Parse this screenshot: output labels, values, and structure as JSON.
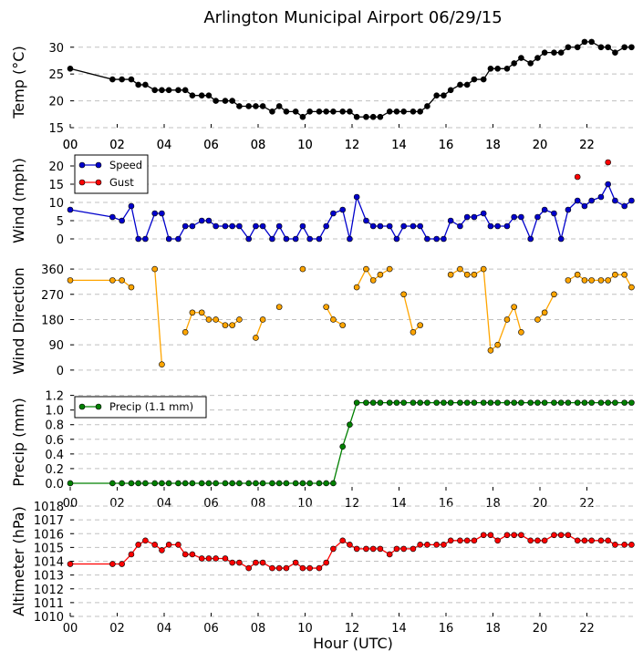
{
  "title": "Arlington Municipal Airport 06/29/15",
  "xlabel": "Hour (UTC)",
  "colors": {
    "temp": "#000000",
    "speed": "#0000cc",
    "gust": "#ff0000",
    "direction": "#ffa500",
    "precip": "#008000",
    "altimeter": "#ff0000",
    "grid": "#c0c0c0"
  },
  "chart_data": [
    {
      "type": "line",
      "name": "temperature",
      "ylabel": "Temp (°C)",
      "xlim": [
        0,
        24
      ],
      "ylim": [
        15,
        32
      ],
      "yticks": [
        15,
        20,
        25,
        30
      ],
      "xticks": [
        "00",
        "02",
        "04",
        "06",
        "08",
        "10",
        "12",
        "14",
        "16",
        "18",
        "20",
        "22"
      ],
      "series": [
        {
          "name": "Temp",
          "x": [
            0,
            1.8,
            2.2,
            2.6,
            2.9,
            3.2,
            3.6,
            3.9,
            4.2,
            4.6,
            4.9,
            5.2,
            5.6,
            5.9,
            6.2,
            6.6,
            6.9,
            7.2,
            7.6,
            7.9,
            8.2,
            8.6,
            8.9,
            9.2,
            9.6,
            9.9,
            10.2,
            10.6,
            10.9,
            11.2,
            11.6,
            11.9,
            12.2,
            12.6,
            12.9,
            13.2,
            13.6,
            13.9,
            14.2,
            14.6,
            14.9,
            15.2,
            15.6,
            15.9,
            16.2,
            16.6,
            16.9,
            17.2,
            17.6,
            17.9,
            18.2,
            18.6,
            18.9,
            19.2,
            19.6,
            19.9,
            20.2,
            20.6,
            20.9,
            21.2,
            21.6,
            21.9,
            22.2,
            22.6,
            22.9,
            23.2,
            23.6,
            23.9
          ],
          "values": [
            26,
            24,
            24,
            24,
            23,
            23,
            22,
            22,
            22,
            22,
            22,
            21,
            21,
            21,
            20,
            20,
            20,
            19,
            19,
            19,
            19,
            18,
            19,
            18,
            18,
            17,
            18,
            18,
            18,
            18,
            18,
            18,
            17,
            17,
            17,
            17,
            18,
            18,
            18,
            18,
            18,
            19,
            21,
            21,
            22,
            23,
            23,
            24,
            24,
            26,
            26,
            26,
            27,
            28,
            27,
            28,
            29,
            29,
            29,
            30,
            30,
            31,
            31,
            30,
            30,
            29,
            30,
            30
          ]
        }
      ]
    },
    {
      "type": "line",
      "name": "wind",
      "ylabel": "Wind (mph)",
      "xlim": [
        0,
        24
      ],
      "ylim": [
        -2,
        23
      ],
      "yticks": [
        0,
        5,
        10,
        15,
        20
      ],
      "legend": [
        "Speed",
        "Gust"
      ],
      "series": [
        {
          "name": "Speed",
          "x": [
            0,
            1.8,
            2.2,
            2.6,
            2.9,
            3.2,
            3.6,
            3.9,
            4.2,
            4.6,
            4.9,
            5.2,
            5.6,
            5.9,
            6.2,
            6.6,
            6.9,
            7.2,
            7.6,
            7.9,
            8.2,
            8.6,
            8.9,
            9.2,
            9.6,
            9.9,
            10.2,
            10.6,
            10.9,
            11.2,
            11.6,
            11.9,
            12.2,
            12.6,
            12.9,
            13.2,
            13.6,
            13.9,
            14.2,
            14.6,
            14.9,
            15.2,
            15.6,
            15.9,
            16.2,
            16.6,
            16.9,
            17.2,
            17.6,
            17.9,
            18.2,
            18.6,
            18.9,
            19.2,
            19.6,
            19.9,
            20.2,
            20.6,
            20.9,
            21.2,
            21.6,
            21.9,
            22.2,
            22.6,
            22.9,
            23.2,
            23.6,
            23.9
          ],
          "values": [
            8,
            6,
            5,
            9,
            0,
            0,
            7,
            7,
            0,
            0,
            3.5,
            3.5,
            5,
            5,
            3.5,
            3.5,
            3.5,
            3.5,
            0,
            3.5,
            3.5,
            0,
            3.5,
            0,
            0,
            3.5,
            0,
            0,
            3.5,
            7,
            8,
            0,
            11.5,
            5,
            3.5,
            3.5,
            3.5,
            0,
            3.5,
            3.5,
            3.5,
            0,
            0,
            0,
            5,
            3.5,
            6,
            6,
            7,
            3.5,
            3.5,
            3.5,
            6,
            6,
            0,
            6,
            8,
            7,
            0,
            8,
            10.5,
            9,
            10.5,
            11.5,
            15,
            10.5,
            9,
            10.5
          ]
        },
        {
          "name": "Gust",
          "x": [
            21.6,
            22.9
          ],
          "values": [
            17,
            21
          ],
          "markers_only": true
        }
      ]
    },
    {
      "type": "line",
      "name": "wind_direction",
      "ylabel": "Wind Direction",
      "xlim": [
        0,
        24
      ],
      "ylim": [
        -20,
        370
      ],
      "yticks": [
        0,
        90,
        180,
        270,
        360
      ],
      "series": [
        {
          "name": "Direction",
          "segments": [
            {
              "x": [
                0,
                1.8,
                2.2,
                2.6
              ],
              "values": [
                320,
                320,
                320,
                295
              ]
            },
            {
              "x": [
                3.6,
                3.9
              ],
              "values": [
                360,
                20
              ]
            },
            {
              "x": [
                4.9,
                5.2,
                5.6,
                5.9,
                6.2,
                6.6,
                6.9,
                7.2
              ],
              "values": [
                135,
                205,
                205,
                180,
                180,
                160,
                160,
                180
              ]
            },
            {
              "x": [
                7.9,
                8.2
              ],
              "values": [
                115,
                180
              ]
            },
            {
              "x": [
                8.9
              ],
              "values": [
                225
              ]
            },
            {
              "x": [
                9.9
              ],
              "values": [
                360
              ]
            },
            {
              "x": [
                10.9,
                11.2,
                11.6
              ],
              "values": [
                225,
                180,
                160
              ]
            },
            {
              "x": [
                12.2,
                12.6,
                12.9,
                13.2,
                13.6
              ],
              "values": [
                295,
                360,
                320,
                340,
                360
              ]
            },
            {
              "x": [
                14.2,
                14.6,
                14.9
              ],
              "values": [
                270,
                135,
                160
              ]
            },
            {
              "x": [
                16.2,
                16.6,
                16.9,
                17.2,
                17.6,
                17.9,
                18.2,
                18.6,
                18.9,
                19.2
              ],
              "values": [
                340,
                360,
                340,
                340,
                360,
                70,
                90,
                180,
                225,
                135
              ]
            },
            {
              "x": [
                19.9,
                20.2,
                20.6
              ],
              "values": [
                180,
                205,
                270
              ]
            },
            {
              "x": [
                21.2,
                21.6,
                21.9,
                22.2,
                22.6,
                22.9,
                23.2,
                23.6,
                23.9
              ],
              "values": [
                320,
                340,
                320,
                320,
                320,
                320,
                340,
                340,
                295
              ]
            }
          ]
        }
      ]
    },
    {
      "type": "line",
      "name": "precipitation",
      "ylabel": "Precip (mm)",
      "xlim": [
        0,
        24
      ],
      "ylim": [
        -0.1,
        1.22
      ],
      "yticks": [
        0.0,
        0.2,
        0.4,
        0.6,
        0.8,
        1.0,
        1.2
      ],
      "ytick_labels": [
        "0.0",
        "0.2",
        "0.4",
        "0.6",
        "0.8",
        "1.0",
        "1.2"
      ],
      "legend": [
        "Precip (1.1 mm)"
      ],
      "series": [
        {
          "name": "Precip (1.1 mm)",
          "x": [
            0,
            1.8,
            2.2,
            2.6,
            2.9,
            3.2,
            3.6,
            3.9,
            4.2,
            4.6,
            4.9,
            5.2,
            5.6,
            5.9,
            6.2,
            6.6,
            6.9,
            7.2,
            7.6,
            7.9,
            8.2,
            8.6,
            8.9,
            9.2,
            9.6,
            9.9,
            10.2,
            10.6,
            10.9,
            11.2,
            11.6,
            11.9,
            12.2,
            12.6,
            12.9,
            13.2,
            13.6,
            13.9,
            14.2,
            14.6,
            14.9,
            15.2,
            15.6,
            15.9,
            16.2,
            16.6,
            16.9,
            17.2,
            17.6,
            17.9,
            18.2,
            18.6,
            18.9,
            19.2,
            19.6,
            19.9,
            20.2,
            20.6,
            20.9,
            21.2,
            21.6,
            21.9,
            22.2,
            22.6,
            22.9,
            23.2,
            23.6,
            23.9
          ],
          "values": [
            0,
            0,
            0,
            0,
            0,
            0,
            0,
            0,
            0,
            0,
            0,
            0,
            0,
            0,
            0,
            0,
            0,
            0,
            0,
            0,
            0,
            0,
            0,
            0,
            0,
            0,
            0,
            0,
            0,
            0,
            0.5,
            0.8,
            1.1,
            1.1,
            1.1,
            1.1,
            1.1,
            1.1,
            1.1,
            1.1,
            1.1,
            1.1,
            1.1,
            1.1,
            1.1,
            1.1,
            1.1,
            1.1,
            1.1,
            1.1,
            1.1,
            1.1,
            1.1,
            1.1,
            1.1,
            1.1,
            1.1,
            1.1,
            1.1,
            1.1,
            1.1,
            1.1,
            1.1,
            1.1,
            1.1,
            1.1,
            1.1,
            1.1
          ]
        }
      ]
    },
    {
      "type": "line",
      "name": "altimeter",
      "ylabel": "Altimeter (hPa)",
      "xlabel": "Hour (UTC)",
      "xlim": [
        0,
        24
      ],
      "ylim": [
        1010,
        1018
      ],
      "yticks": [
        1010,
        1011,
        1012,
        1013,
        1014,
        1015,
        1016,
        1017,
        1018
      ],
      "series": [
        {
          "name": "Altimeter",
          "x": [
            0,
            1.8,
            2.2,
            2.6,
            2.9,
            3.2,
            3.6,
            3.9,
            4.2,
            4.6,
            4.9,
            5.2,
            5.6,
            5.9,
            6.2,
            6.6,
            6.9,
            7.2,
            7.6,
            7.9,
            8.2,
            8.6,
            8.9,
            9.2,
            9.6,
            9.9,
            10.2,
            10.6,
            10.9,
            11.2,
            11.6,
            11.9,
            12.2,
            12.6,
            12.9,
            13.2,
            13.6,
            13.9,
            14.2,
            14.6,
            14.9,
            15.2,
            15.6,
            15.9,
            16.2,
            16.6,
            16.9,
            17.2,
            17.6,
            17.9,
            18.2,
            18.6,
            18.9,
            19.2,
            19.6,
            19.9,
            20.2,
            20.6,
            20.9,
            21.2,
            21.6,
            21.9,
            22.2,
            22.6,
            22.9,
            23.2,
            23.6,
            23.9
          ],
          "values": [
            1013.8,
            1013.8,
            1013.8,
            1014.5,
            1015.2,
            1015.5,
            1015.2,
            1014.8,
            1015.2,
            1015.2,
            1014.5,
            1014.5,
            1014.2,
            1014.2,
            1014.2,
            1014.2,
            1013.9,
            1013.9,
            1013.5,
            1013.9,
            1013.9,
            1013.5,
            1013.5,
            1013.5,
            1013.9,
            1013.5,
            1013.5,
            1013.5,
            1013.9,
            1014.9,
            1015.5,
            1015.2,
            1014.9,
            1014.9,
            1014.9,
            1014.9,
            1014.5,
            1014.9,
            1014.9,
            1014.9,
            1015.2,
            1015.2,
            1015.2,
            1015.2,
            1015.5,
            1015.5,
            1015.5,
            1015.5,
            1015.9,
            1015.9,
            1015.5,
            1015.9,
            1015.9,
            1015.9,
            1015.5,
            1015.5,
            1015.5,
            1015.9,
            1015.9,
            1015.9,
            1015.5,
            1015.5,
            1015.5,
            1015.5,
            1015.5,
            1015.2,
            1015.2,
            1015.2
          ]
        }
      ]
    }
  ]
}
